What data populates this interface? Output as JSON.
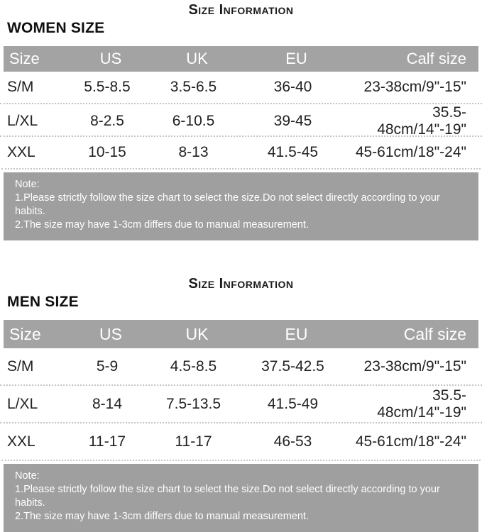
{
  "colors": {
    "header_bg": "#a3a3a3",
    "note_bg": "#9f9f9f",
    "header_text": "#ffffff",
    "note_text": "#ffffff",
    "text": "#222222"
  },
  "women": {
    "title": "Size Information",
    "section_label": "WOMEN SIZE",
    "columns": [
      "Size",
      "US",
      "UK",
      "EU",
      "Calf size"
    ],
    "rows": [
      {
        "size": "S/M",
        "us": "5.5-8.5",
        "uk": "3.5-6.5",
        "eu": "36-40",
        "calf": "23-38cm/9\"-15\""
      },
      {
        "size": "L/XL",
        "us": "8-2.5",
        "uk": "6-10.5",
        "eu": "39-45",
        "calf": "35.5-48cm/14\"-19\""
      },
      {
        "size": "XXL",
        "us": "10-15",
        "uk": "8-13",
        "eu": "41.5-45",
        "calf": "45-61cm/18\"-24\""
      }
    ],
    "note": {
      "label": "Note:",
      "line1": "1.Please strictly follow the size chart to select the size.Do not select directly according to your habits.",
      "line2": "2.The size may have 1-3cm differs due to manual measurement."
    }
  },
  "men": {
    "title": "Size Information",
    "section_label": "MEN SIZE",
    "columns": [
      "Size",
      "US",
      "UK",
      "EU",
      "Calf size"
    ],
    "rows": [
      {
        "size": "S/M",
        "us": "5-9",
        "uk": "4.5-8.5",
        "eu": "37.5-42.5",
        "calf": "23-38cm/9\"-15\""
      },
      {
        "size": "L/XL",
        "us": "8-14",
        "uk": "7.5-13.5",
        "eu": "41.5-49",
        "calf": "35.5-48cm/14\"-19\""
      },
      {
        "size": "XXL",
        "us": "11-17",
        "uk": "11-17",
        "eu": "46-53",
        "calf": "45-61cm/18\"-24\""
      }
    ],
    "note": {
      "label": "Note:",
      "line1": "1.Please strictly follow the size chart to select the size.Do not select directly according to your habits.",
      "line2": "2.The size may have 1-3cm differs due to manual measurement."
    }
  }
}
